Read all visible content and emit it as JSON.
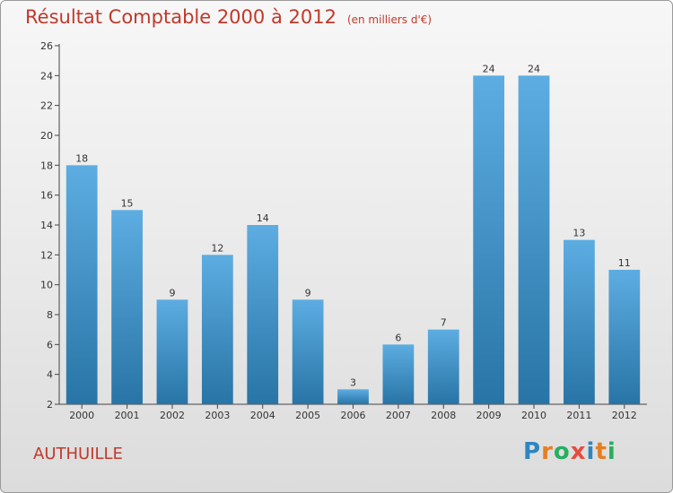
{
  "header": {
    "title": "Résultat Comptable 2000 à 2012",
    "unit": "(en milliers d'€)"
  },
  "footer": {
    "commune": "AUTHUILLE",
    "logo_letters": [
      "P",
      "r",
      "o",
      "x",
      "i",
      "t",
      "i"
    ],
    "logo_colors": [
      "#2e86c1",
      "#e67e22",
      "#27ae60",
      "#e74c3c",
      "#2e86c1",
      "#e67e22",
      "#27ae60"
    ]
  },
  "chart_data": {
    "type": "bar",
    "categories": [
      "2000",
      "2001",
      "2002",
      "2003",
      "2004",
      "2005",
      "2006",
      "2007",
      "2008",
      "2009",
      "2010",
      "2011",
      "2012"
    ],
    "values": [
      18,
      15,
      9,
      12,
      14,
      9,
      3,
      6,
      7,
      24,
      24,
      13,
      11
    ],
    "ylim": [
      2,
      26
    ],
    "yticks": [
      2,
      4,
      6,
      8,
      10,
      12,
      14,
      16,
      18,
      20,
      22,
      24,
      26
    ],
    "grid": false,
    "bar_color_top": "#5dade2",
    "bar_color_bottom": "#2874a6",
    "title_color": "#c0392b"
  }
}
